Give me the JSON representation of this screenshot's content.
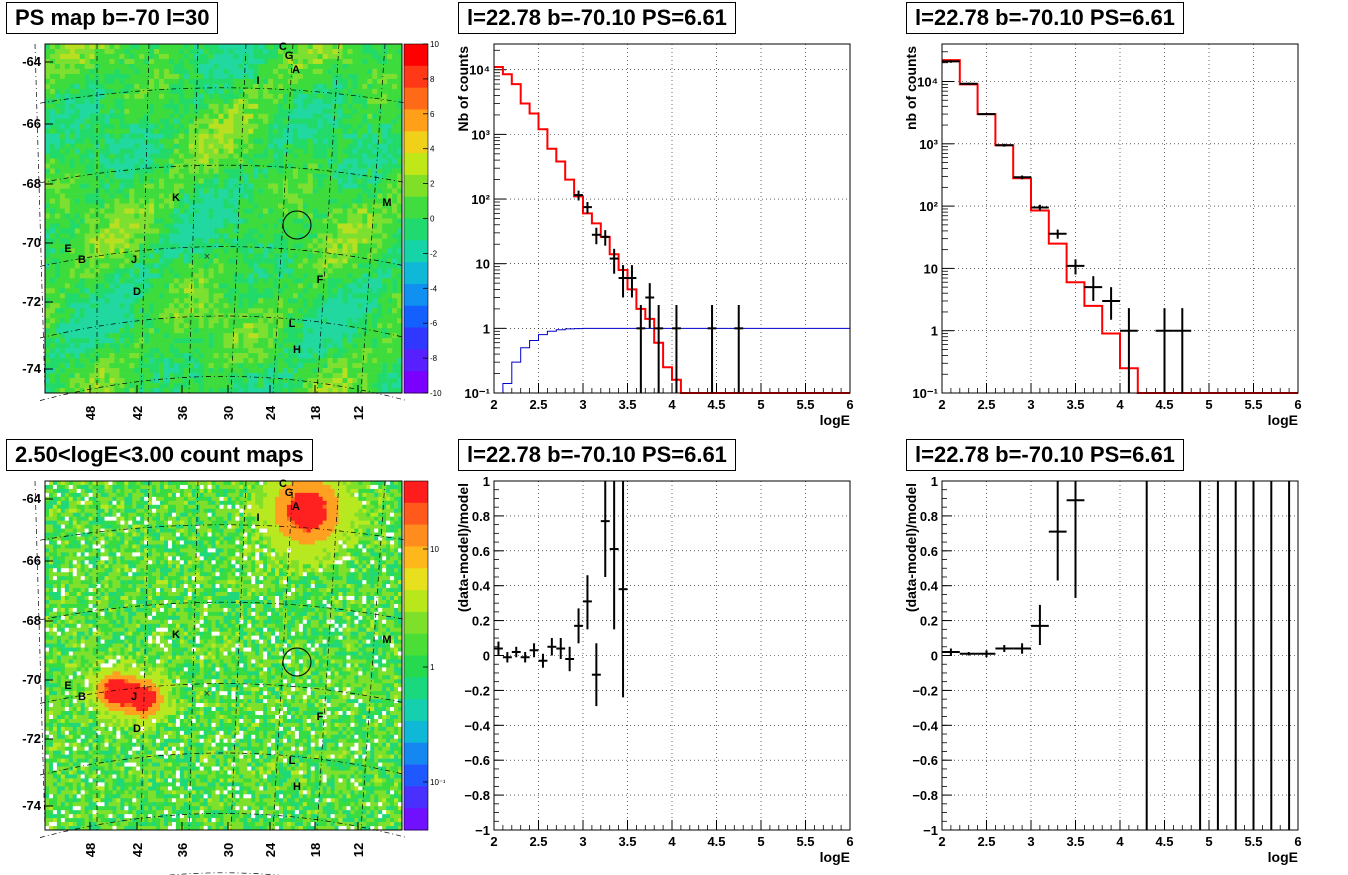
{
  "panels": [
    {
      "id": "ps_map",
      "title": "PS map b=-70 l=30",
      "type": "heatmap",
      "y_ticks": [
        "-64",
        "-66",
        "-68",
        "-70",
        "-72",
        "-74"
      ],
      "x_ticks": [
        "48",
        "42",
        "36",
        "30",
        "24",
        "18",
        "12"
      ],
      "colorbar_ticks": [
        "10",
        "8",
        "6",
        "4",
        "2",
        "0",
        "-2",
        "-4",
        "-6",
        "-8",
        "-10"
      ],
      "source_labels": [
        "C",
        "G",
        "A",
        "I",
        "K",
        "M",
        "E",
        "B",
        "J",
        "D",
        "F",
        "L",
        "H"
      ]
    },
    {
      "id": "count_map",
      "title": "2.50<logE<3.00 count maps",
      "type": "heatmap",
      "y_ticks": [
        "-64",
        "-66",
        "-68",
        "-70",
        "-72",
        "-74"
      ],
      "x_ticks": [
        "48",
        "42",
        "36",
        "30",
        "24",
        "18",
        "12"
      ],
      "colorbar_ticks": [
        "10",
        "1",
        "10⁻¹"
      ],
      "source_labels": [
        "C",
        "G",
        "A",
        "I",
        "K",
        "M",
        "E",
        "B",
        "J",
        "D",
        "F",
        "L",
        "H"
      ]
    }
  ],
  "chart_data": [
    {
      "type": "step",
      "title": "l=22.78 b=-70.10 PS=6.61",
      "xlabel": "logE",
      "ylabel": "Nb of counts",
      "log_y": true,
      "xlim": [
        2,
        6
      ],
      "ylim": [
        0.1,
        25000
      ],
      "x_ticks": [
        "2",
        "2.5",
        "3",
        "3.5",
        "4",
        "4.5",
        "5",
        "5.5",
        "6"
      ],
      "y_ticks": [
        "10⁻¹",
        "1",
        "10",
        "10²",
        "10³",
        "10⁴"
      ],
      "grid": true,
      "bin_edges": [
        2.0,
        2.1,
        2.2,
        2.3,
        2.4,
        2.5,
        2.6,
        2.7,
        2.8,
        2.9,
        3.0,
        3.1,
        3.2,
        3.3,
        3.4,
        3.5,
        3.6,
        3.7,
        3.8,
        3.9,
        4.0,
        4.1,
        6.0
      ],
      "series": [
        {
          "name": "",
          "color": "#ff0000",
          "values": [
            11000,
            8500,
            6000,
            3000,
            2100,
            1200,
            600,
            380,
            200,
            110,
            60,
            42,
            26,
            14,
            8,
            4,
            2,
            1.4,
            0.6,
            0.25,
            0.16,
            0.1
          ]
        },
        {
          "name": "",
          "color": "#0000cc",
          "values": [
            0.1,
            0.14,
            0.3,
            0.5,
            0.65,
            0.8,
            0.9,
            0.95,
            0.98,
            0.99,
            1,
            1,
            1,
            1,
            1,
            1,
            1,
            1,
            1,
            1,
            1,
            1
          ],
          "extend_to": 6.0
        }
      ],
      "points": {
        "x": [
          2.95,
          3.05,
          3.15,
          3.25,
          3.35,
          3.45,
          3.55,
          3.65,
          3.75,
          3.85,
          4.05,
          4.45,
          4.75
        ],
        "y": [
          115,
          75,
          28,
          26,
          12,
          6,
          6,
          1,
          3,
          1,
          1,
          1,
          1
        ],
        "xerr": 0.05,
        "ylow": [
          95,
          60,
          20,
          19,
          7,
          3,
          3,
          0.1,
          1,
          0.1,
          0.1,
          0.1,
          0.1
        ],
        "yhigh": [
          135,
          90,
          36,
          33,
          17,
          9.5,
          9.5,
          2.3,
          5,
          2.3,
          2.3,
          2.3,
          2.3
        ]
      }
    },
    {
      "type": "step",
      "title": "l=22.78 b=-70.10 PS=6.61",
      "xlabel": "logE",
      "ylabel": "nb of counts",
      "log_y": true,
      "xlim": [
        2,
        6
      ],
      "ylim": [
        0.1,
        40000
      ],
      "x_ticks": [
        "2",
        "2.5",
        "3",
        "3.5",
        "4",
        "4.5",
        "5",
        "5.5",
        "6"
      ],
      "y_ticks": [
        "10⁻¹",
        "1",
        "10",
        "10²",
        "10³",
        "10⁴"
      ],
      "grid": true,
      "bin_edges": [
        2.0,
        2.2,
        2.4,
        2.6,
        2.8,
        3.0,
        3.2,
        3.4,
        3.6,
        3.8,
        4.0,
        4.2,
        6.0
      ],
      "series": [
        {
          "name": "",
          "color": "#ff0000",
          "values": [
            22000,
            9000,
            3000,
            950,
            280,
            85,
            25,
            6,
            2.5,
            0.9,
            0.25,
            0.1
          ]
        }
      ],
      "points": {
        "x": [
          2.1,
          2.3,
          2.5,
          2.7,
          2.9,
          3.1,
          3.3,
          3.5,
          3.7,
          3.9,
          4.1,
          4.5,
          4.7
        ],
        "y": [
          21000,
          9200,
          3000,
          950,
          290,
          95,
          36,
          11,
          5,
          3,
          1,
          1,
          1
        ],
        "xerr": 0.1,
        "ylow": [
          20000,
          8800,
          2900,
          900,
          270,
          85,
          30,
          8,
          3,
          1.5,
          0.1,
          0.1,
          0.1
        ],
        "yhigh": [
          22000,
          9600,
          3100,
          1000,
          310,
          105,
          42,
          14,
          7.5,
          5,
          2.3,
          2.3,
          2.3
        ]
      }
    },
    {
      "type": "scatter",
      "title": "l=22.78 b=-70.10 PS=6.61",
      "xlabel": "logE",
      "ylabel": "(data-model)/model",
      "log_y": false,
      "xlim": [
        2,
        6
      ],
      "ylim": [
        -1,
        1
      ],
      "x_ticks": [
        "2",
        "2.5",
        "3",
        "3.5",
        "4",
        "4.5",
        "5",
        "5.5",
        "6"
      ],
      "y_ticks": [
        "−1",
        "−0.8",
        "−0.6",
        "−0.4",
        "−0.2",
        "0",
        "0.2",
        "0.4",
        "0.6",
        "0.8",
        "1"
      ],
      "grid": true,
      "points": {
        "x": [
          2.05,
          2.15,
          2.25,
          2.35,
          2.45,
          2.55,
          2.65,
          2.75,
          2.85,
          2.95,
          3.05,
          3.15,
          3.25,
          3.35,
          3.45
        ],
        "y": [
          0.04,
          -0.01,
          0.02,
          -0.01,
          0.03,
          -0.03,
          0.05,
          0.04,
          -0.02,
          0.17,
          0.31,
          -0.11,
          0.77,
          0.61,
          0.38
        ],
        "xerr": 0.05,
        "ylow": [
          0.0,
          -0.04,
          -0.01,
          -0.04,
          -0.01,
          -0.07,
          0.0,
          -0.02,
          -0.09,
          0.07,
          0.15,
          -0.29,
          0.45,
          0.15,
          -0.24
        ],
        "yhigh": [
          0.08,
          0.02,
          0.05,
          0.02,
          0.07,
          0.01,
          0.1,
          0.1,
          0.05,
          0.27,
          0.46,
          0.07,
          1.0,
          1.0,
          1.0
        ]
      }
    },
    {
      "type": "scatter",
      "title": "l=22.78 b=-70.10 PS=6.61",
      "xlabel": "logE",
      "ylabel": "(data-model)/model",
      "log_y": false,
      "xlim": [
        2,
        6
      ],
      "ylim": [
        -1,
        1
      ],
      "x_ticks": [
        "2",
        "2.5",
        "3",
        "3.5",
        "4",
        "4.5",
        "5",
        "5.5",
        "6"
      ],
      "y_ticks": [
        "−1",
        "−0.8",
        "−0.6",
        "−0.4",
        "−0.2",
        "0",
        "0.2",
        "0.4",
        "0.6",
        "0.8",
        "1"
      ],
      "grid": true,
      "points": {
        "x": [
          2.1,
          2.3,
          2.5,
          2.7,
          2.9,
          3.1,
          3.3,
          3.5
        ],
        "y": [
          0.02,
          0.01,
          0.01,
          0.04,
          0.04,
          0.17,
          0.71,
          0.89
        ],
        "xerr": 0.1,
        "ylow": [
          0.0,
          0.0,
          -0.01,
          0.02,
          0.01,
          0.06,
          0.43,
          0.33
        ],
        "yhigh": [
          0.04,
          0.02,
          0.03,
          0.06,
          0.07,
          0.29,
          1.0,
          1.0
        ]
      },
      "vertical_lines_x": [
        4.3,
        4.9,
        5.1,
        5.3,
        5.5,
        5.7,
        5.9
      ]
    }
  ]
}
